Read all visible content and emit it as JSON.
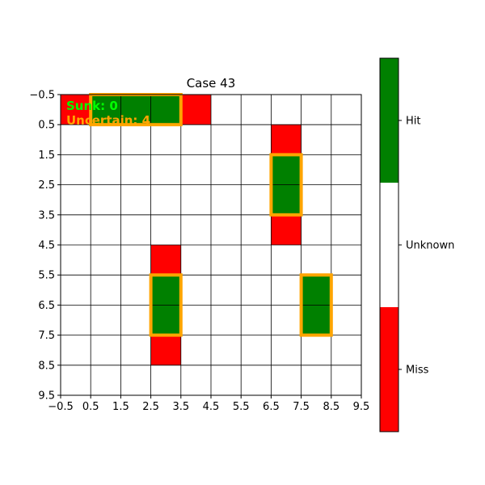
{
  "chart_data": {
    "type": "heatmap",
    "title": "Case 43",
    "xlim": [
      -0.5,
      9.5
    ],
    "ylim": [
      9.5,
      -0.5
    ],
    "x_ticks": [
      "−0.5",
      "0.5",
      "1.5",
      "2.5",
      "3.5",
      "4.5",
      "5.5",
      "6.5",
      "7.5",
      "8.5",
      "9.5"
    ],
    "y_ticks": [
      "−0.5",
      "0.5",
      "1.5",
      "2.5",
      "3.5",
      "4.5",
      "5.5",
      "6.5",
      "7.5",
      "8.5",
      "9.5"
    ],
    "grid": true,
    "cell_categories": [
      "Miss",
      "Unknown",
      "Hit"
    ],
    "colors": {
      "Miss": "#ff0000",
      "Unknown": "#ffffff",
      "Hit": "#008000",
      "highlight": "#ffa500",
      "sunk_text": "#00ff00",
      "uncertain_text": "#ffa500"
    },
    "grid_values": [
      [
        "Miss",
        "Hit",
        "Hit",
        "Hit",
        "Miss",
        "Unknown",
        "Unknown",
        "Unknown",
        "Unknown",
        "Unknown"
      ],
      [
        "Unknown",
        "Unknown",
        "Unknown",
        "Unknown",
        "Unknown",
        "Unknown",
        "Unknown",
        "Miss",
        "Unknown",
        "Unknown"
      ],
      [
        "Unknown",
        "Unknown",
        "Unknown",
        "Unknown",
        "Unknown",
        "Unknown",
        "Unknown",
        "Hit",
        "Unknown",
        "Unknown"
      ],
      [
        "Unknown",
        "Unknown",
        "Unknown",
        "Unknown",
        "Unknown",
        "Unknown",
        "Unknown",
        "Hit",
        "Unknown",
        "Unknown"
      ],
      [
        "Unknown",
        "Unknown",
        "Unknown",
        "Unknown",
        "Unknown",
        "Unknown",
        "Unknown",
        "Miss",
        "Unknown",
        "Unknown"
      ],
      [
        "Unknown",
        "Unknown",
        "Unknown",
        "Miss",
        "Unknown",
        "Unknown",
        "Unknown",
        "Unknown",
        "Unknown",
        "Unknown"
      ],
      [
        "Unknown",
        "Unknown",
        "Unknown",
        "Hit",
        "Unknown",
        "Unknown",
        "Unknown",
        "Unknown",
        "Hit",
        "Unknown"
      ],
      [
        "Unknown",
        "Unknown",
        "Unknown",
        "Hit",
        "Unknown",
        "Unknown",
        "Unknown",
        "Unknown",
        "Hit",
        "Unknown"
      ],
      [
        "Unknown",
        "Unknown",
        "Unknown",
        "Miss",
        "Unknown",
        "Unknown",
        "Unknown",
        "Unknown",
        "Unknown",
        "Unknown"
      ],
      [
        "Unknown",
        "Unknown",
        "Unknown",
        "Unknown",
        "Unknown",
        "Unknown",
        "Unknown",
        "Unknown",
        "Unknown",
        "Unknown"
      ]
    ],
    "uncertain_ships": [
      {
        "x": [
          1,
          3
        ],
        "y": [
          0,
          0
        ]
      },
      {
        "x": [
          7,
          7
        ],
        "y": [
          2,
          3
        ]
      },
      {
        "x": [
          3,
          3
        ],
        "y": [
          6,
          7
        ]
      },
      {
        "x": [
          8,
          8
        ],
        "y": [
          6,
          7
        ]
      }
    ],
    "annotations": {
      "sunk": "Sunk: 0",
      "uncertain": "Uncertain: 4"
    },
    "colorbar": {
      "labels": [
        "Miss",
        "Unknown",
        "Hit"
      ]
    }
  }
}
